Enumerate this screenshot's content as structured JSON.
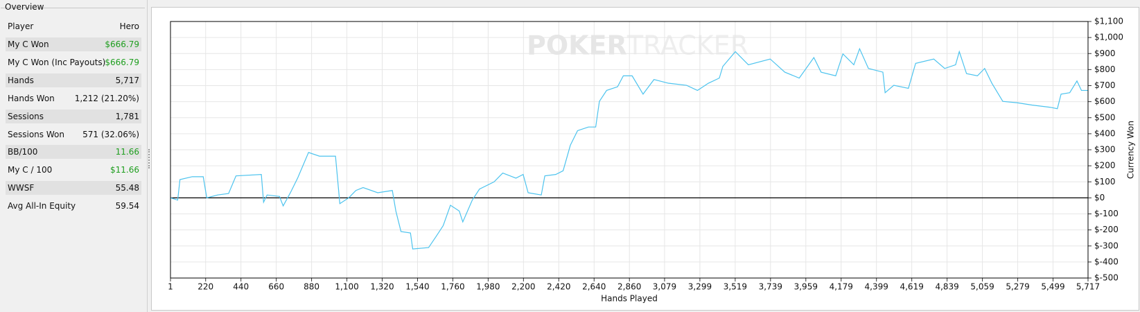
{
  "panel": {
    "title": "Overview",
    "header": [
      "Player",
      "Hero"
    ],
    "rows": [
      {
        "label": "My C Won",
        "value": "$666.79",
        "color": "#1e9e1e"
      },
      {
        "label": "My C Won (Inc Payouts)",
        "value": "$666.79",
        "color": "#1e9e1e"
      },
      {
        "label": "Hands",
        "value": "5,717"
      },
      {
        "label": "Hands Won",
        "value": "1,212 (21.20%)"
      },
      {
        "label": "Sessions",
        "value": "1,781"
      },
      {
        "label": "Sessions Won",
        "value": "571 (32.06%)"
      },
      {
        "label": "BB/100",
        "value": "11.66",
        "color": "#1e9e1e"
      },
      {
        "label": "My C / 100",
        "value": "$11.66",
        "color": "#1e9e1e"
      },
      {
        "label": "WWSF",
        "value": "55.48"
      },
      {
        "label": "Avg All-In Equity",
        "value": "59.54"
      }
    ]
  },
  "chart_data": {
    "type": "line",
    "watermark": [
      "POKER",
      "TRACKER"
    ],
    "x_label": "Hands Played",
    "y_label": "Currency Won",
    "x": [
      1,
      46,
      60,
      137,
      205,
      227,
      295,
      363,
      409,
      567,
      581,
      603,
      680,
      703,
      748,
      793,
      861,
      929,
      1029,
      1056,
      1111,
      1156,
      1201,
      1292,
      1383,
      1405,
      1437,
      1496,
      1510,
      1609,
      1655,
      1700,
      1745,
      1800,
      1822,
      1881,
      1926,
      2017,
      2071,
      2153,
      2198,
      2229,
      2311,
      2333,
      2401,
      2447,
      2492,
      2537,
      2605,
      2650,
      2673,
      2718,
      2786,
      2822,
      2877,
      2945,
      3013,
      3103,
      3216,
      3284,
      3352,
      3420,
      3442,
      3520,
      3601,
      3737,
      3828,
      3918,
      4009,
      4054,
      4145,
      4190,
      4258,
      4294,
      4349,
      4439,
      4453,
      4507,
      4598,
      4643,
      4756,
      4824,
      4892,
      4915,
      4960,
      5028,
      5073,
      5118,
      5186,
      5277,
      5367,
      5481,
      5526,
      5549,
      5603,
      5648,
      5676,
      5717
    ],
    "values": [
      0,
      -14,
      114,
      132,
      132,
      0,
      18,
      27,
      137,
      146,
      -27,
      18,
      9,
      -50,
      32,
      123,
      283,
      260,
      260,
      -36,
      0,
      46,
      64,
      32,
      46,
      -82,
      -210,
      -219,
      -319,
      -310,
      -242,
      -173,
      -46,
      -82,
      -150,
      -14,
      55,
      100,
      155,
      123,
      146,
      32,
      18,
      137,
      146,
      169,
      328,
      419,
      442,
      442,
      602,
      670,
      693,
      761,
      761,
      647,
      738,
      715,
      702,
      670,
      715,
      747,
      820,
      912,
      830,
      866,
      784,
      747,
      875,
      784,
      761,
      898,
      830,
      930,
      807,
      784,
      656,
      702,
      683,
      839,
      866,
      807,
      830,
      912,
      775,
      761,
      807,
      715,
      602,
      593,
      579,
      565,
      556,
      647,
      656,
      729,
      670,
      670
    ],
    "color": "#4cc3ee",
    "xlim": [
      1,
      5717
    ],
    "xticks": [
      1,
      220,
      440,
      660,
      880,
      {
        "value": 1100,
        "label": "1,100"
      },
      {
        "value": 1320,
        "label": "1,320"
      },
      {
        "value": 1540,
        "label": "1,540"
      },
      {
        "value": 1760,
        "label": "1,760"
      },
      {
        "value": 1980,
        "label": "1,980"
      },
      {
        "value": 2200,
        "label": "2,200"
      },
      {
        "value": 2420,
        "label": "2,420"
      },
      {
        "value": 2640,
        "label": "2,640"
      },
      {
        "value": 2860,
        "label": "2,860"
      },
      {
        "value": 3079,
        "label": "3,079"
      },
      {
        "value": 3299,
        "label": "3,299"
      },
      {
        "value": 3519,
        "label": "3,519"
      },
      {
        "value": 3739,
        "label": "3,739"
      },
      {
        "value": 3959,
        "label": "3,959"
      },
      {
        "value": 4179,
        "label": "4,179"
      },
      {
        "value": 4399,
        "label": "4,399"
      },
      {
        "value": 4619,
        "label": "4,619"
      },
      {
        "value": 4839,
        "label": "4,839"
      },
      {
        "value": 5059,
        "label": "5,059"
      },
      {
        "value": 5279,
        "label": "5,279"
      },
      {
        "value": 5499,
        "label": "5,499"
      },
      {
        "value": 5717,
        "label": "5,717"
      }
    ],
    "ylim": [
      -500,
      1100
    ],
    "yticks": [
      {
        "value": -500,
        "label": "$-500"
      },
      {
        "value": -400,
        "label": "$-400"
      },
      {
        "value": -300,
        "label": "$-300"
      },
      {
        "value": -200,
        "label": "$-200"
      },
      {
        "value": -100,
        "label": "$-100"
      },
      {
        "value": 0,
        "label": "$0"
      },
      {
        "value": 100,
        "label": "$100"
      },
      {
        "value": 200,
        "label": "$200"
      },
      {
        "value": 300,
        "label": "$300"
      },
      {
        "value": 400,
        "label": "$400"
      },
      {
        "value": 500,
        "label": "$500"
      },
      {
        "value": 600,
        "label": "$600"
      },
      {
        "value": 700,
        "label": "$700"
      },
      {
        "value": 800,
        "label": "$800"
      },
      {
        "value": 900,
        "label": "$900"
      },
      {
        "value": 1000,
        "label": "$1,000"
      },
      {
        "value": 1100,
        "label": "$1,100"
      }
    ],
    "grid": true
  }
}
